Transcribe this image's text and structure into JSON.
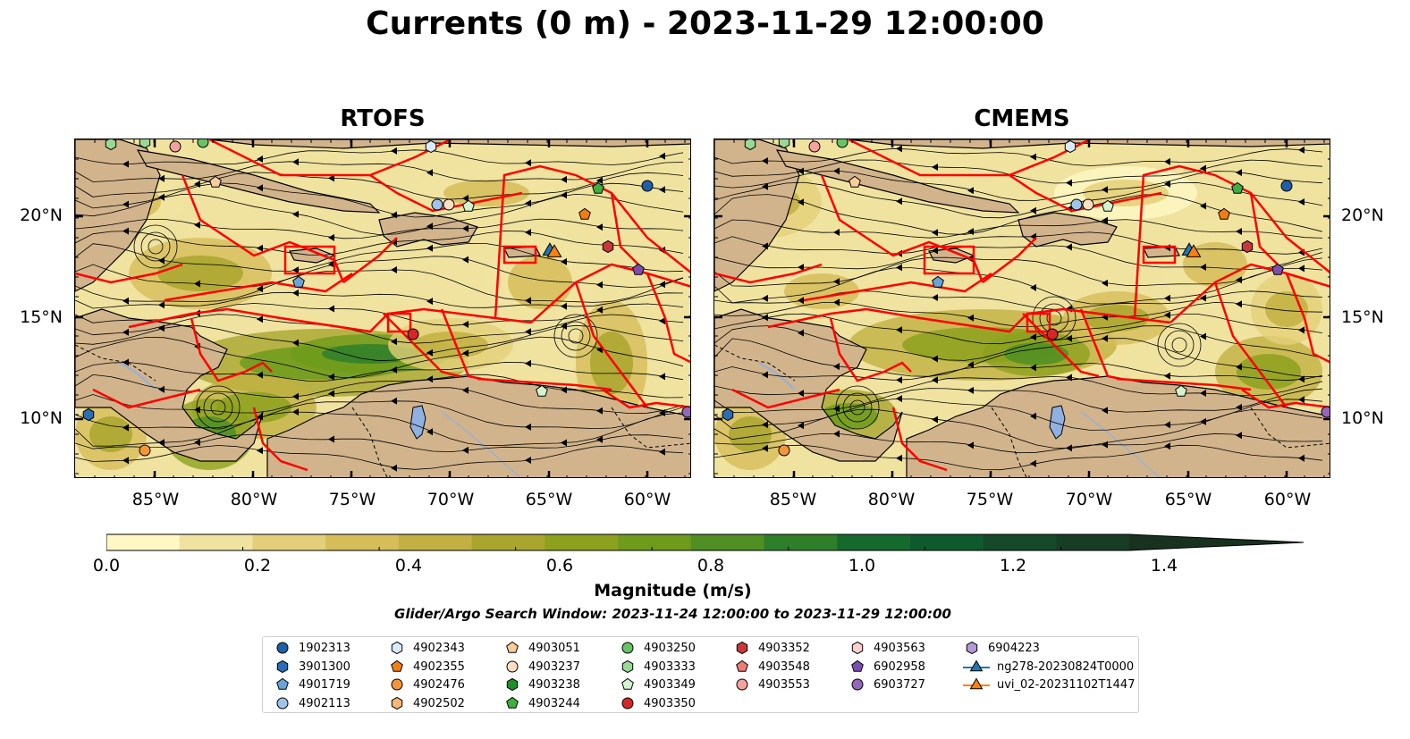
{
  "title": "Currents (0 m) - 2023-11-29 12:00:00",
  "panels": [
    {
      "title": "RTOFS"
    },
    {
      "title": "CMEMS"
    }
  ],
  "lat_ticks": [
    "20°N",
    "15°N",
    "10°N"
  ],
  "lon_ticks": [
    "85°W",
    "80°W",
    "75°W",
    "70°W",
    "65°W",
    "60°W"
  ],
  "colorbar": {
    "label": "Magnitude (m/s)",
    "min": 0.0,
    "max": 1.5,
    "extend": "max",
    "ticks": [
      "0.0",
      "0.2",
      "0.4",
      "0.6",
      "0.8",
      "1.0",
      "1.2",
      "1.4"
    ],
    "colors": [
      "#fff8c4",
      "#f0e3a0",
      "#e3cf79",
      "#d6bd5a",
      "#c2b042",
      "#a9a52e",
      "#8da11e",
      "#6e9b1c",
      "#4f8f23",
      "#2f7f2a",
      "#15692c",
      "#0f5a2c",
      "#144a2a",
      "#173d25",
      "#19311f"
    ]
  },
  "search_window": "Glider/Argo Search Window: 2023-11-24 12:00:00 to 2023-11-29 12:00:00",
  "legend": {
    "items": [
      {
        "label": "1902313",
        "marker": "circle",
        "color": "#1f5fa8"
      },
      {
        "label": "3901300",
        "marker": "hexagon",
        "color": "#2a6db5"
      },
      {
        "label": "4901719",
        "marker": "pentagon",
        "color": "#6aa3d8"
      },
      {
        "label": "4902113",
        "marker": "circle",
        "color": "#9fc4ea"
      },
      {
        "label": "4902343",
        "marker": "hexagon",
        "color": "#d9ecff"
      },
      {
        "label": "4902355",
        "marker": "pentagon",
        "color": "#f07e15"
      },
      {
        "label": "4902476",
        "marker": "circle",
        "color": "#f3953a"
      },
      {
        "label": "4902502",
        "marker": "hexagon",
        "color": "#f8b774"
      },
      {
        "label": "4903051",
        "marker": "pentagon",
        "color": "#f9cc9b"
      },
      {
        "label": "4903237",
        "marker": "circle",
        "color": "#fde0c4"
      },
      {
        "label": "4903238",
        "marker": "hexagon",
        "color": "#1f8f2a"
      },
      {
        "label": "4903244",
        "marker": "pentagon",
        "color": "#3fae3f"
      },
      {
        "label": "4903250",
        "marker": "circle",
        "color": "#67c466"
      },
      {
        "label": "4903333",
        "marker": "hexagon",
        "color": "#9ad896"
      },
      {
        "label": "4903349",
        "marker": "pentagon",
        "color": "#d4f2cd"
      },
      {
        "label": "4903350",
        "marker": "circle",
        "color": "#d62728"
      },
      {
        "label": "4903352",
        "marker": "hexagon",
        "color": "#c8383b"
      },
      {
        "label": "4903548",
        "marker": "pentagon",
        "color": "#ec7b78"
      },
      {
        "label": "4903553",
        "marker": "circle",
        "color": "#f4a29e"
      },
      {
        "label": "4903563",
        "marker": "hexagon",
        "color": "#fbd0d0"
      },
      {
        "label": "6902958",
        "marker": "pentagon",
        "color": "#7b4fb0"
      },
      {
        "label": "6903727",
        "marker": "circle",
        "color": "#9467bd"
      },
      {
        "label": "6904223",
        "marker": "hexagon",
        "color": "#b39ad6"
      },
      {
        "label": "ng278-20230824T0000",
        "marker": "triangle-line",
        "color": "#1f77b4"
      },
      {
        "label": "uvi_02-20231102T1447",
        "marker": "triangle-line",
        "color": "#ff7f0e"
      }
    ]
  },
  "map_style": {
    "land": "#d2b48c",
    "boundary": "#ff0000",
    "streamline": "#000000",
    "lake": "#8fb0e0"
  }
}
